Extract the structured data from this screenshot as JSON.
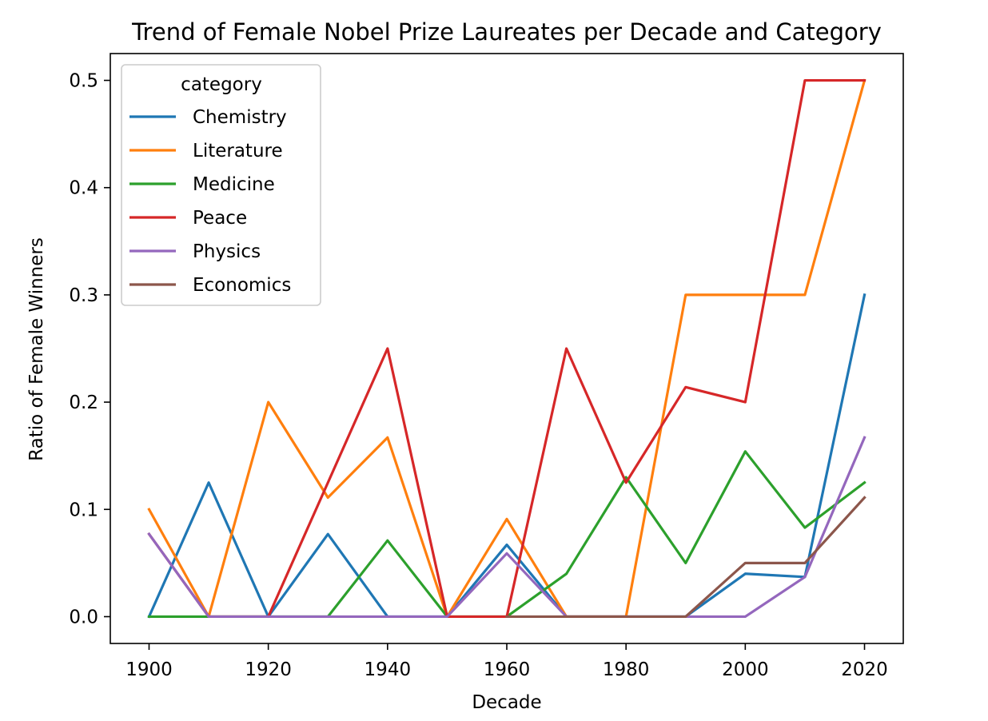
{
  "chart_data": {
    "type": "line",
    "title": "Trend of Female Nobel Prize Laureates per Decade and Category",
    "xlabel": "Decade",
    "ylabel": "Ratio of Female Winners",
    "x": [
      1900,
      1910,
      1920,
      1930,
      1940,
      1950,
      1960,
      1970,
      1980,
      1990,
      2000,
      2010,
      2020
    ],
    "xlim": [
      1893.5,
      2026.5
    ],
    "ylim": [
      -0.025,
      0.525
    ],
    "x_ticks": [
      1900,
      1920,
      1940,
      1960,
      1980,
      2000,
      2020
    ],
    "y_ticks": [
      0.0,
      0.1,
      0.2,
      0.3,
      0.4,
      0.5
    ],
    "y_tick_labels": [
      "0.0",
      "0.1",
      "0.2",
      "0.3",
      "0.4",
      "0.5"
    ],
    "grid": false,
    "legend": {
      "title": "category",
      "placement": "top-left"
    },
    "series": [
      {
        "name": "Chemistry",
        "color": "#1f77b4",
        "values": [
          0.0,
          0.125,
          0.0,
          0.077,
          0.0,
          0.0,
          0.067,
          0.0,
          0.0,
          0.0,
          0.04,
          0.037,
          0.3
        ]
      },
      {
        "name": "Literature",
        "color": "#ff7f0e",
        "values": [
          0.1,
          0.0,
          0.2,
          0.111,
          0.167,
          0.0,
          0.091,
          0.0,
          0.0,
          0.3,
          0.3,
          0.3,
          0.5
        ]
      },
      {
        "name": "Medicine",
        "color": "#2ca02c",
        "values": [
          0.0,
          0.0,
          0.0,
          0.0,
          0.071,
          0.0,
          0.0,
          0.04,
          0.13,
          0.05,
          0.154,
          0.083,
          0.125
        ]
      },
      {
        "name": "Peace",
        "color": "#d62728",
        "values": [
          0.077,
          0.0,
          0.0,
          0.125,
          0.25,
          0.0,
          0.0,
          0.25,
          0.125,
          0.214,
          0.2,
          0.5,
          0.5
        ]
      },
      {
        "name": "Physics",
        "color": "#9467bd",
        "values": [
          0.077,
          0.0,
          0.0,
          0.0,
          0.0,
          0.0,
          0.059,
          0.0,
          0.0,
          0.0,
          0.0,
          0.037,
          0.167
        ]
      },
      {
        "name": "Economics",
        "color": "#8c564b",
        "values": [
          null,
          null,
          null,
          null,
          null,
          null,
          0.0,
          0.0,
          0.0,
          0.0,
          0.05,
          0.05,
          0.111
        ]
      }
    ]
  }
}
